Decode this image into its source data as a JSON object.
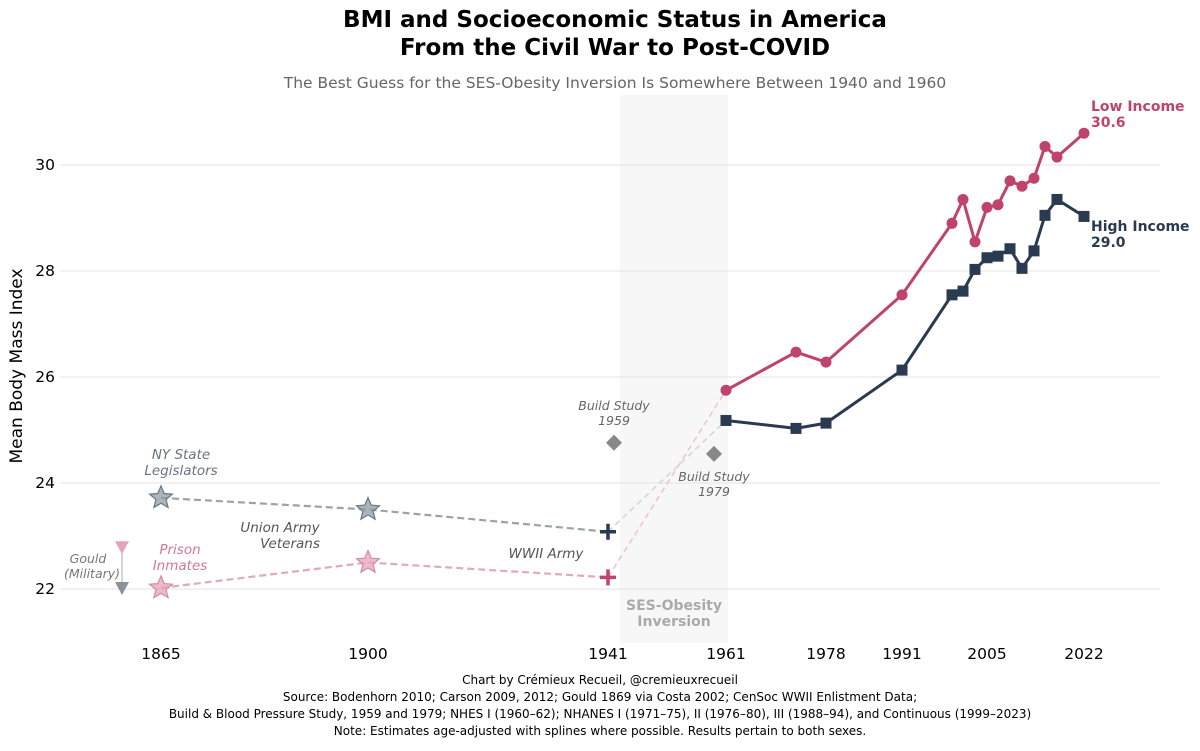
{
  "chart_data": {
    "type": "line",
    "title": [
      "BMI and Socioeconomic Status in America",
      "From the Civil War to Post-COVID"
    ],
    "subtitle": "The Best Guess for the SES-Obesity Inversion Is Somewhere Between 1940 and 1960",
    "ylabel": "Mean Body Mass Index",
    "xlabel": "",
    "x_ticks": [
      1865,
      1900,
      1941,
      1961,
      1978,
      1991,
      2005,
      2022
    ],
    "y_ticks": [
      22,
      24,
      26,
      28,
      30
    ],
    "ylim": [
      21.0,
      31.3
    ],
    "grid": "horizontal",
    "colors": {
      "low": "#c0436a",
      "high": "#2a3a50",
      "gray": "#8a8f96",
      "pink": "#e0a3b4",
      "diamond": "#888888",
      "band": "#f7f7f7"
    },
    "shaded_band": {
      "label": [
        "SES-Obesity",
        "Inversion"
      ]
    },
    "series": [
      {
        "name": "Low Income",
        "end_label": "Low Income",
        "end_value": "30.6",
        "color": "#c0436a",
        "marker": "circle",
        "points": [
          [
            1961,
            25.75
          ],
          [
            1974,
            26.47
          ],
          [
            1978,
            26.28
          ],
          [
            1991,
            27.55
          ],
          [
            2000,
            28.9
          ],
          [
            2002,
            29.35
          ],
          [
            2003,
            28.55
          ],
          [
            2005,
            29.2
          ],
          [
            2007,
            29.25
          ],
          [
            2009,
            29.7
          ],
          [
            2011,
            29.6
          ],
          [
            2013,
            29.75
          ],
          [
            2015,
            30.35
          ],
          [
            2017,
            30.15
          ],
          [
            2022,
            30.6
          ]
        ]
      },
      {
        "name": "High Income",
        "end_label": "High Income",
        "end_value": "29.0",
        "color": "#2a3a50",
        "marker": "square",
        "points": [
          [
            1961,
            25.18
          ],
          [
            1974,
            25.03
          ],
          [
            1978,
            25.13
          ],
          [
            1991,
            26.13
          ],
          [
            2000,
            27.55
          ],
          [
            2002,
            27.62
          ],
          [
            2003,
            28.03
          ],
          [
            2005,
            28.25
          ],
          [
            2007,
            28.28
          ],
          [
            2009,
            28.42
          ],
          [
            2011,
            28.05
          ],
          [
            2013,
            28.38
          ],
          [
            2015,
            29.05
          ],
          [
            2017,
            29.35
          ],
          [
            2022,
            29.03
          ]
        ]
      }
    ],
    "historical": {
      "high_dashed": [
        [
          1865,
          23.72
        ],
        [
          1900,
          23.5
        ],
        [
          1941,
          23.08
        ]
      ],
      "low_dashed": [
        [
          1865,
          22.02
        ],
        [
          1900,
          22.5
        ],
        [
          1941,
          22.22
        ]
      ],
      "connector_high": [
        [
          1941,
          23.08
        ],
        [
          1961,
          25.18
        ]
      ],
      "connector_low": [
        [
          1941,
          22.22
        ],
        [
          1961,
          25.75
        ]
      ],
      "gould_high": [
        1858.5,
        22.0
      ],
      "gould_low": [
        1858.5,
        22.77
      ],
      "build_1959": [
        1943.5,
        24.76
      ],
      "build_1979": [
        1959.5,
        24.55
      ]
    },
    "annotations": {
      "ny_state": [
        "NY State",
        "Legislators"
      ],
      "union_army": [
        "Union Army",
        "Veterans"
      ],
      "prison": [
        "Prison",
        "Inmates"
      ],
      "gould": [
        "Gould",
        "(Military)"
      ],
      "wwii": "WWII Army",
      "build_1959": [
        "Build Study",
        "1959"
      ],
      "build_1979": [
        "Build Study",
        "1979"
      ]
    }
  },
  "footer": {
    "line1": "Chart by Crémieux Recueil, @cremieuxrecueil",
    "line2": "Source: Bodenhorn 2010; Carson 2009, 2012; Gould 1869 via Costa 2002; CenSoc WWII Enlistment Data;",
    "line3": "Build & Blood Pressure Study, 1959 and 1979; NHES I (1960–62); NHANES I (1971–75), II (1976–80), III (1988–94), and Continuous (1999–2023)",
    "line4": "Note: Estimates age-adjusted with splines where possible. Results pertain to both sexes."
  }
}
